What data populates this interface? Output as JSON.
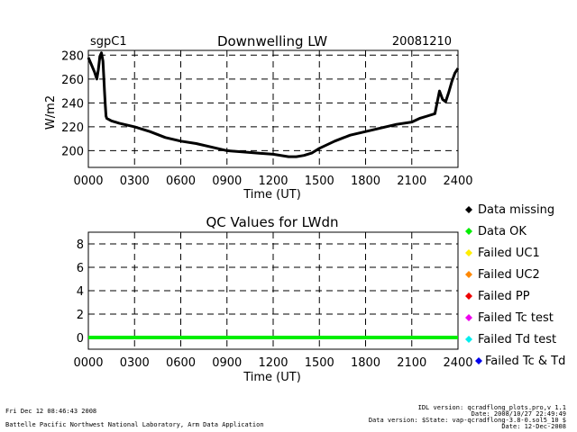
{
  "chart_data": [
    {
      "type": "line",
      "title": "Downwelling LW",
      "site": "sgpC1",
      "date": "20081210",
      "xlabel": "Time (UT)",
      "ylabel": "W/m2",
      "xlim": [
        0,
        2400
      ],
      "ylim": [
        186,
        284
      ],
      "xticks": [
        "0000",
        "0300",
        "0600",
        "0900",
        "1200",
        "1500",
        "1800",
        "2100",
        "2400"
      ],
      "xtick_values": [
        0,
        300,
        600,
        900,
        1200,
        1500,
        1800,
        2100,
        2400
      ],
      "yticks": [
        200,
        220,
        240,
        260,
        280
      ],
      "x": [
        0,
        20,
        40,
        55,
        65,
        75,
        85,
        95,
        100,
        105,
        110,
        115,
        120,
        150,
        200,
        300,
        400,
        500,
        600,
        700,
        800,
        900,
        1000,
        1100,
        1200,
        1300,
        1350,
        1400,
        1450,
        1500,
        1600,
        1700,
        1800,
        1900,
        2000,
        2100,
        2150,
        2200,
        2250,
        2280,
        2300,
        2320,
        2340,
        2360,
        2380,
        2400
      ],
      "y": [
        278,
        272,
        266,
        260,
        268,
        279,
        282,
        275,
        262,
        250,
        238,
        229,
        227,
        225,
        223,
        220,
        216,
        211,
        208,
        206,
        203,
        200,
        199,
        198,
        197,
        195,
        195,
        196,
        198,
        202,
        208,
        213,
        216,
        219,
        222,
        224,
        227,
        229,
        231,
        250,
        243,
        241,
        249,
        258,
        265,
        269
      ],
      "grid": true
    },
    {
      "type": "line",
      "title": "QC Values for LWdn",
      "xlabel": "Time (UT)",
      "ylabel": "",
      "xlim": [
        0,
        2400
      ],
      "ylim": [
        -1,
        9
      ],
      "xticks": [
        "0000",
        "0300",
        "0600",
        "0900",
        "1200",
        "1500",
        "1800",
        "2100",
        "2400"
      ],
      "xtick_values": [
        0,
        300,
        600,
        900,
        1200,
        1500,
        1800,
        2100,
        2400
      ],
      "yticks": [
        0,
        2,
        4,
        6,
        8
      ],
      "series": [
        {
          "name": "Data OK",
          "x": [
            0,
            2400
          ],
          "values": [
            0,
            0
          ],
          "color": "#00ee00"
        }
      ],
      "legend": {
        "position": "right",
        "entries": [
          {
            "name": "Data missing",
            "color": "#000000"
          },
          {
            "name": "Data OK",
            "color": "#00ee00"
          },
          {
            "name": "Failed UC1",
            "color": "#ffee00"
          },
          {
            "name": "Failed UC2",
            "color": "#ff8800"
          },
          {
            "name": "Failed PP",
            "color": "#ee0000"
          },
          {
            "name": "Failed Tc test",
            "color": "#ee00ee"
          },
          {
            "name": "Failed Td test",
            "color": "#00eeee"
          },
          {
            "name": "Failed Tc & Td",
            "color": "#0000ee"
          }
        ]
      },
      "grid": true
    }
  ],
  "footer": {
    "timestamp": "Fri Dec 12 08:46:43 2008",
    "org": "Battelle Pacific Northwest National Laboratory, Arm Data Application",
    "idl_version": "IDL version: qcradflong_plots.pro,v 1.1",
    "date_line": "Date: 2008/10/27 22:49:49",
    "data_version": "Data version: $State: vap-qcradflong-3.8-0.sol5_10 $",
    "date_created": "Date: 12-Dec-2008"
  }
}
